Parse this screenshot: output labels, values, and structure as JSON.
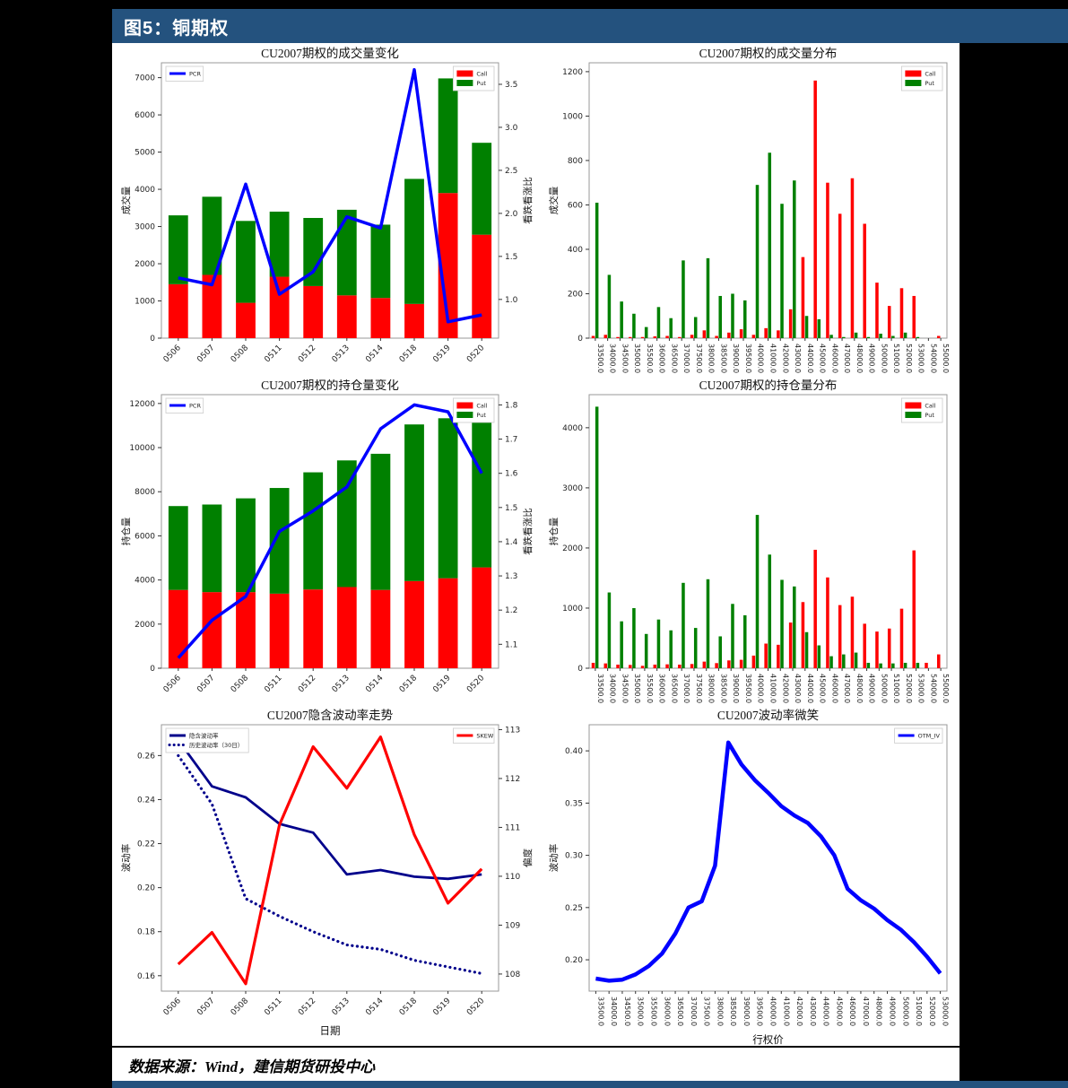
{
  "page": {
    "figure_label": "图5：铜期权",
    "source_note": "数据来源：Wind，建信期货研投中心",
    "accent_color": "#24527e",
    "call_color": "#ff0000",
    "put_color": "#008000",
    "pcr_color": "#0000ff"
  },
  "chart_data": [
    {
      "id": "volume-change",
      "type": "bar",
      "title": "CU2007期权的成交量变化",
      "ylabel_left": "成交量",
      "ylabel_right": "看跌看涨比",
      "xlabel": "",
      "x_tick_style": "date45",
      "bar_mode": "stacked",
      "categories": [
        "0506",
        "0507",
        "0508",
        "0511",
        "0512",
        "0513",
        "0514",
        "0518",
        "0519",
        "0520"
      ],
      "bars": [
        {
          "name": "Call",
          "color": "#ff0000",
          "values": [
            1450,
            1700,
            950,
            1650,
            1400,
            1150,
            1080,
            920,
            3900,
            2780
          ]
        },
        {
          "name": "Put",
          "color": "#008000",
          "values": [
            1850,
            2100,
            2200,
            1750,
            1830,
            2300,
            1970,
            3360,
            3080,
            2470
          ]
        }
      ],
      "lines": [
        {
          "name": "PCR",
          "color": "#0000ff",
          "width": 3.5,
          "style": "solid",
          "axis": "right",
          "values": [
            1.25,
            1.17,
            2.34,
            1.06,
            1.32,
            1.96,
            1.83,
            3.67,
            0.74,
            0.82
          ]
        }
      ],
      "left_axis": {
        "lim": [
          0,
          7400
        ],
        "ticks": [
          [
            0,
            "0"
          ],
          [
            1000,
            "1000"
          ],
          [
            2000,
            "2000"
          ],
          [
            3000,
            "3000"
          ],
          [
            4000,
            "4000"
          ],
          [
            5000,
            "5000"
          ],
          [
            6000,
            "6000"
          ],
          [
            7000,
            "7000"
          ]
        ]
      },
      "right_axis": {
        "lim": [
          0.55,
          3.75
        ],
        "ticks": [
          [
            1.0,
            "1.0"
          ],
          [
            1.5,
            "1.5"
          ],
          [
            2.0,
            "2.0"
          ],
          [
            2.5,
            "2.5"
          ],
          [
            3.0,
            "3.0"
          ],
          [
            3.5,
            "3.5"
          ]
        ]
      },
      "legends": [
        {
          "anchor": "left",
          "entries": [
            {
              "label": "PCR",
              "type": "line",
              "color": "#0000ff"
            }
          ]
        },
        {
          "anchor": "right",
          "entries": [
            {
              "label": "Call",
              "type": "patch",
              "color": "#ff0000"
            },
            {
              "label": "Put",
              "type": "patch",
              "color": "#008000"
            }
          ]
        }
      ]
    },
    {
      "id": "volume-distribution",
      "type": "bar",
      "title": "CU2007期权的成交量分布",
      "ylabel_left": "成交量",
      "ylabel_right": "",
      "xlabel": "",
      "x_tick_style": "strike90",
      "bar_mode": "grouped",
      "categories": [
        "33500.0",
        "34000.0",
        "34500.0",
        "35000.0",
        "35500.0",
        "36000.0",
        "36500.0",
        "37000.0",
        "37500.0",
        "38000.0",
        "38500.0",
        "39000.0",
        "39500.0",
        "40000.0",
        "41000.0",
        "42000.0",
        "43000.0",
        "44000.0",
        "45000.0",
        "46000.0",
        "47000.0",
        "48000.0",
        "49000.0",
        "50000.0",
        "51000.0",
        "52000.0",
        "53000.0",
        "54000.0",
        "55000.0"
      ],
      "bars": [
        {
          "name": "Call",
          "color": "#ff0000",
          "values": [
            10,
            15,
            5,
            5,
            5,
            8,
            10,
            5,
            15,
            35,
            10,
            25,
            40,
            15,
            45,
            35,
            130,
            365,
            1160,
            700,
            560,
            720,
            515,
            250,
            145,
            225,
            190,
            0,
            10
          ]
        },
        {
          "name": "Put",
          "color": "#008000",
          "values": [
            610,
            285,
            165,
            110,
            50,
            140,
            90,
            350,
            95,
            360,
            190,
            200,
            170,
            690,
            835,
            605,
            710,
            100,
            85,
            15,
            5,
            25,
            5,
            20,
            10,
            25,
            5,
            0,
            0
          ]
        }
      ],
      "lines": [],
      "left_axis": {
        "lim": [
          0,
          1240
        ],
        "ticks": [
          [
            0,
            "0"
          ],
          [
            200,
            "200"
          ],
          [
            400,
            "400"
          ],
          [
            600,
            "600"
          ],
          [
            800,
            "800"
          ],
          [
            1000,
            "1000"
          ],
          [
            1200,
            "1200"
          ]
        ]
      },
      "right_axis": null,
      "legends": [
        {
          "anchor": "right",
          "entries": [
            {
              "label": "Call",
              "type": "patch",
              "color": "#ff0000"
            },
            {
              "label": "Put",
              "type": "patch",
              "color": "#008000"
            }
          ]
        }
      ]
    },
    {
      "id": "open-interest-change",
      "type": "bar",
      "title": "CU2007期权的持仓量变化",
      "ylabel_left": "持仓量",
      "ylabel_right": "看跌看涨比",
      "xlabel": "",
      "x_tick_style": "date45",
      "bar_mode": "stacked",
      "categories": [
        "0506",
        "0507",
        "0508",
        "0511",
        "0512",
        "0513",
        "0514",
        "0518",
        "0519",
        "0520"
      ],
      "bars": [
        {
          "name": "Call",
          "color": "#ff0000",
          "values": [
            3550,
            3450,
            3450,
            3380,
            3570,
            3680,
            3550,
            3950,
            4080,
            4570
          ]
        },
        {
          "name": "Put",
          "color": "#008000",
          "values": [
            3800,
            3970,
            4250,
            4790,
            5310,
            5740,
            6170,
            7100,
            7250,
            7100
          ]
        }
      ],
      "lines": [
        {
          "name": "PCR",
          "color": "#0000ff",
          "width": 3.5,
          "style": "solid",
          "axis": "right",
          "values": [
            1.06,
            1.17,
            1.24,
            1.43,
            1.49,
            1.56,
            1.73,
            1.8,
            1.78,
            1.6
          ]
        }
      ],
      "left_axis": {
        "lim": [
          0,
          12400
        ],
        "ticks": [
          [
            0,
            "0"
          ],
          [
            2000,
            "2000"
          ],
          [
            4000,
            "4000"
          ],
          [
            6000,
            "6000"
          ],
          [
            8000,
            "8000"
          ],
          [
            10000,
            "10000"
          ],
          [
            12000,
            "12000"
          ]
        ]
      },
      "right_axis": {
        "lim": [
          1.03,
          1.83
        ],
        "ticks": [
          [
            1.1,
            "1.1"
          ],
          [
            1.2,
            "1.2"
          ],
          [
            1.3,
            "1.3"
          ],
          [
            1.4,
            "1.4"
          ],
          [
            1.5,
            "1.5"
          ],
          [
            1.6,
            "1.6"
          ],
          [
            1.7,
            "1.7"
          ],
          [
            1.8,
            "1.8"
          ]
        ]
      },
      "legends": [
        {
          "anchor": "left",
          "entries": [
            {
              "label": "PCR",
              "type": "line",
              "color": "#0000ff"
            }
          ]
        },
        {
          "anchor": "right",
          "entries": [
            {
              "label": "Call",
              "type": "patch",
              "color": "#ff0000"
            },
            {
              "label": "Put",
              "type": "patch",
              "color": "#008000"
            }
          ]
        }
      ]
    },
    {
      "id": "open-interest-distribution",
      "type": "bar",
      "title": "CU2007期权的持仓量分布",
      "ylabel_left": "持仓量",
      "ylabel_right": "",
      "xlabel": "",
      "x_tick_style": "strike90",
      "bar_mode": "grouped",
      "categories": [
        "33500.0",
        "34000.0",
        "34500.0",
        "35000.0",
        "35500.0",
        "36000.0",
        "36500.0",
        "37000.0",
        "37500.0",
        "38000.0",
        "38500.0",
        "39000.0",
        "39500.0",
        "40000.0",
        "41000.0",
        "42000.0",
        "43000.0",
        "44000.0",
        "45000.0",
        "46000.0",
        "47000.0",
        "48000.0",
        "49000.0",
        "50000.0",
        "51000.0",
        "52000.0",
        "53000.0",
        "54000.0",
        "55000.0"
      ],
      "bars": [
        {
          "name": "Call",
          "color": "#ff0000",
          "values": [
            90,
            80,
            60,
            55,
            40,
            60,
            65,
            60,
            70,
            110,
            85,
            130,
            140,
            210,
            410,
            390,
            760,
            1100,
            1970,
            1510,
            1050,
            1190,
            740,
            610,
            660,
            990,
            1960,
            90,
            230
          ]
        },
        {
          "name": "Put",
          "color": "#008000",
          "values": [
            4350,
            1260,
            780,
            1000,
            570,
            810,
            630,
            1420,
            670,
            1480,
            530,
            1070,
            880,
            2550,
            1890,
            1470,
            1360,
            600,
            380,
            200,
            230,
            260,
            90,
            80,
            80,
            90,
            90,
            0,
            0
          ]
        }
      ],
      "lines": [],
      "left_axis": {
        "lim": [
          0,
          4550
        ],
        "ticks": [
          [
            0,
            "0"
          ],
          [
            1000,
            "1000"
          ],
          [
            2000,
            "2000"
          ],
          [
            3000,
            "3000"
          ],
          [
            4000,
            "4000"
          ]
        ]
      },
      "right_axis": null,
      "legends": [
        {
          "anchor": "right",
          "entries": [
            {
              "label": "Call",
              "type": "patch",
              "color": "#ff0000"
            },
            {
              "label": "Put",
              "type": "patch",
              "color": "#008000"
            }
          ]
        }
      ]
    },
    {
      "id": "implied-vol-trend",
      "type": "line",
      "title": "CU2007隐含波动率走势",
      "ylabel_left": "波动率",
      "ylabel_right": "偏度",
      "xlabel": "日期",
      "x_tick_style": "date45",
      "bar_mode": "none",
      "categories": [
        "0506",
        "0507",
        "0508",
        "0511",
        "0512",
        "0513",
        "0514",
        "0518",
        "0519",
        "0520"
      ],
      "bars": [],
      "lines": [
        {
          "name": "隐含波动率",
          "color": "#00008b",
          "width": 2.8,
          "style": "solid",
          "axis": "left",
          "values": [
            0.267,
            0.246,
            0.241,
            0.229,
            0.225,
            0.206,
            0.208,
            0.205,
            0.204,
            0.206
          ]
        },
        {
          "name": "历史波动率（30日）",
          "color": "#00008b",
          "width": 3.2,
          "style": "dotted",
          "axis": "left",
          "values": [
            0.26,
            0.238,
            0.195,
            0.187,
            0.18,
            0.174,
            0.172,
            0.167,
            0.164,
            0.161
          ]
        },
        {
          "name": "SKEW",
          "color": "#ff0000",
          "width": 3.2,
          "style": "solid",
          "axis": "right",
          "values": [
            108.2,
            108.85,
            107.8,
            111.05,
            112.65,
            111.8,
            112.85,
            110.85,
            109.45,
            110.15
          ]
        }
      ],
      "left_axis": {
        "lim": [
          0.153,
          0.274
        ],
        "ticks": [
          [
            0.16,
            "0.16"
          ],
          [
            0.18,
            "0.18"
          ],
          [
            0.2,
            "0.20"
          ],
          [
            0.22,
            "0.22"
          ],
          [
            0.24,
            "0.24"
          ],
          [
            0.26,
            "0.26"
          ]
        ]
      },
      "right_axis": {
        "lim": [
          107.65,
          113.1
        ],
        "ticks": [
          [
            108,
            "108"
          ],
          [
            109,
            "109"
          ],
          [
            110,
            "110"
          ],
          [
            111,
            "111"
          ],
          [
            112,
            "112"
          ],
          [
            113,
            "113"
          ]
        ]
      },
      "legends": [
        {
          "anchor": "left",
          "entries": [
            {
              "label": "隐含波动率",
              "type": "line",
              "color": "#00008b"
            },
            {
              "label": "历史波动率（30日）",
              "type": "line",
              "color": "#00008b",
              "dash": true
            }
          ]
        },
        {
          "anchor": "right",
          "entries": [
            {
              "label": "SKEW",
              "type": "line",
              "color": "#ff0000"
            }
          ]
        }
      ]
    },
    {
      "id": "vol-smile",
      "type": "line",
      "title": "CU2007波动率微笑",
      "ylabel_left": "波动率",
      "ylabel_right": "",
      "xlabel": "行权价",
      "x_tick_style": "strike90",
      "bar_mode": "none",
      "categories": [
        "33500.0",
        "34000.0",
        "34500.0",
        "35000.0",
        "35500.0",
        "36000.0",
        "36500.0",
        "37000.0",
        "37500.0",
        "38000.0",
        "38500.0",
        "39000.0",
        "39500.0",
        "40000.0",
        "41000.0",
        "42000.0",
        "43000.0",
        "44000.0",
        "45000.0",
        "46000.0",
        "47000.0",
        "48000.0",
        "49000.0",
        "50000.0",
        "51000.0",
        "52000.0",
        "53000.0"
      ],
      "bars": [],
      "lines": [
        {
          "name": "OTM_IV",
          "color": "#0000ff",
          "width": 4.5,
          "style": "solid",
          "axis": "left",
          "values": [
            0.182,
            0.18,
            0.181,
            0.186,
            0.194,
            0.206,
            0.225,
            0.25,
            0.256,
            0.29,
            0.408,
            0.387,
            0.372,
            0.36,
            0.347,
            0.338,
            0.331,
            0.318,
            0.3,
            0.268,
            0.257,
            0.249,
            0.238,
            0.229,
            0.217,
            0.203,
            0.187
          ]
        }
      ],
      "left_axis": {
        "lim": [
          0.17,
          0.425
        ],
        "ticks": [
          [
            0.2,
            "0.20"
          ],
          [
            0.25,
            "0.25"
          ],
          [
            0.3,
            "0.30"
          ],
          [
            0.35,
            "0.35"
          ],
          [
            0.4,
            "0.40"
          ]
        ]
      },
      "right_axis": null,
      "legends": [
        {
          "anchor": "right",
          "entries": [
            {
              "label": "OTM_IV",
              "type": "line",
              "color": "#0000ff"
            }
          ]
        }
      ]
    }
  ]
}
